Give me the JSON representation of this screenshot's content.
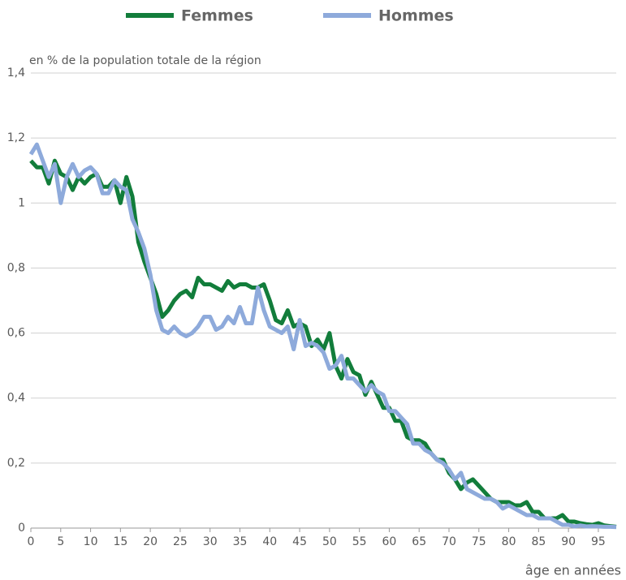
{
  "chart_data": {
    "type": "line",
    "y_label": "en % de la population totale de la région",
    "x_label": "âge en années",
    "x": [
      0,
      1,
      2,
      3,
      4,
      5,
      6,
      7,
      8,
      9,
      10,
      11,
      12,
      13,
      14,
      15,
      16,
      17,
      18,
      19,
      20,
      21,
      22,
      23,
      24,
      25,
      26,
      27,
      28,
      29,
      30,
      31,
      32,
      33,
      34,
      35,
      36,
      37,
      38,
      39,
      40,
      41,
      42,
      43,
      44,
      45,
      46,
      47,
      48,
      49,
      50,
      51,
      52,
      53,
      54,
      55,
      56,
      57,
      58,
      59,
      60,
      61,
      62,
      63,
      64,
      65,
      66,
      67,
      68,
      69,
      70,
      71,
      72,
      73,
      74,
      75,
      76,
      77,
      78,
      79,
      80,
      81,
      82,
      83,
      84,
      85,
      86,
      87,
      88,
      89,
      90,
      91,
      92,
      93,
      94,
      95,
      96,
      97,
      98
    ],
    "series": [
      {
        "name": "Femmes",
        "color": "#127d3b",
        "values": [
          1.13,
          1.11,
          1.11,
          1.06,
          1.13,
          1.09,
          1.08,
          1.04,
          1.08,
          1.06,
          1.08,
          1.09,
          1.05,
          1.05,
          1.07,
          1.0,
          1.08,
          1.02,
          0.88,
          0.82,
          0.77,
          0.72,
          0.65,
          0.67,
          0.7,
          0.72,
          0.73,
          0.71,
          0.77,
          0.75,
          0.75,
          0.74,
          0.73,
          0.76,
          0.74,
          0.75,
          0.75,
          0.74,
          0.74,
          0.75,
          0.7,
          0.64,
          0.63,
          0.67,
          0.62,
          0.63,
          0.62,
          0.56,
          0.58,
          0.55,
          0.6,
          0.5,
          0.46,
          0.52,
          0.48,
          0.47,
          0.41,
          0.45,
          0.41,
          0.37,
          0.37,
          0.33,
          0.33,
          0.28,
          0.27,
          0.27,
          0.26,
          0.23,
          0.21,
          0.21,
          0.17,
          0.15,
          0.12,
          0.14,
          0.15,
          0.13,
          0.11,
          0.09,
          0.08,
          0.08,
          0.08,
          0.07,
          0.07,
          0.08,
          0.05,
          0.05,
          0.03,
          0.03,
          0.03,
          0.04,
          0.02,
          0.02,
          0.015,
          0.012,
          0.01,
          0.015,
          0.008,
          0.006,
          0.004
        ]
      },
      {
        "name": "Hommes",
        "color": "#8eaadb",
        "values": [
          1.15,
          1.18,
          1.13,
          1.08,
          1.12,
          1.0,
          1.08,
          1.12,
          1.08,
          1.1,
          1.11,
          1.09,
          1.03,
          1.03,
          1.07,
          1.05,
          1.04,
          0.95,
          0.91,
          0.86,
          0.78,
          0.67,
          0.61,
          0.6,
          0.62,
          0.6,
          0.59,
          0.6,
          0.62,
          0.65,
          0.65,
          0.61,
          0.62,
          0.65,
          0.63,
          0.68,
          0.63,
          0.63,
          0.74,
          0.67,
          0.62,
          0.61,
          0.6,
          0.62,
          0.55,
          0.64,
          0.56,
          0.57,
          0.56,
          0.54,
          0.49,
          0.5,
          0.53,
          0.46,
          0.46,
          0.44,
          0.42,
          0.44,
          0.42,
          0.41,
          0.36,
          0.36,
          0.34,
          0.32,
          0.26,
          0.26,
          0.24,
          0.23,
          0.21,
          0.2,
          0.18,
          0.15,
          0.17,
          0.12,
          0.11,
          0.1,
          0.09,
          0.09,
          0.08,
          0.06,
          0.07,
          0.06,
          0.05,
          0.04,
          0.04,
          0.03,
          0.03,
          0.03,
          0.02,
          0.01,
          0.01,
          0.005,
          0.008,
          0.005,
          0.006,
          0.005,
          0.004,
          0.004,
          0.003
        ]
      }
    ],
    "xlim": [
      0,
      98
    ],
    "xticks": [
      0,
      5,
      10,
      15,
      20,
      25,
      30,
      35,
      40,
      45,
      50,
      55,
      60,
      65,
      70,
      75,
      80,
      85,
      90,
      95
    ],
    "ylim": [
      0,
      1.4
    ],
    "yticks": [
      0,
      {
        "value": 0.2,
        "label": "0,2"
      },
      {
        "value": 0.4,
        "label": "0,4"
      },
      {
        "value": 0.6,
        "label": "0,6"
      },
      {
        "value": 0.8,
        "label": "0,8"
      },
      1,
      {
        "value": 1.2,
        "label": "1,2"
      },
      {
        "value": 1.4,
        "label": "1,4"
      }
    ],
    "grid": true,
    "legend": "top"
  }
}
